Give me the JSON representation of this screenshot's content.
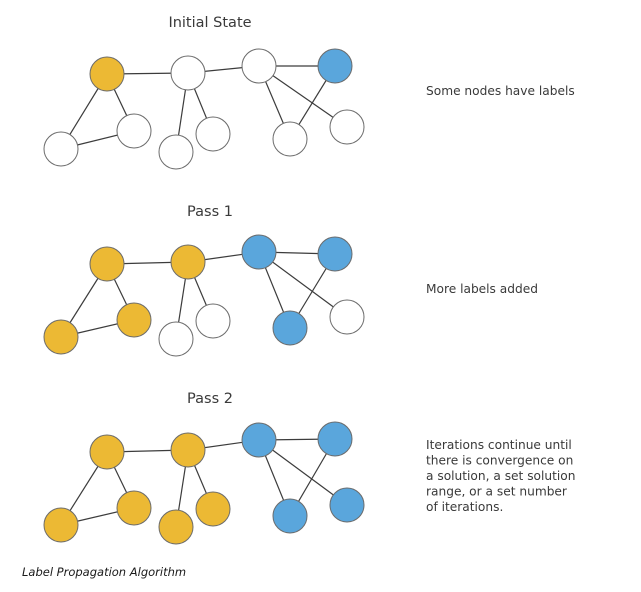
{
  "colors": {
    "unlabeled": "#ffffff",
    "orange": "#ecb934",
    "blue": "#5aa6dc"
  },
  "stages": [
    {
      "title": "Initial State",
      "note": [
        "Some nodes have labels"
      ],
      "labels": [
        "orange",
        "unlabeled",
        "unlabeled",
        "unlabeled",
        "unlabeled",
        "unlabeled",
        "blue",
        "unlabeled",
        "unlabeled"
      ]
    },
    {
      "title": "Pass 1",
      "note": [
        "More labels added"
      ],
      "labels": [
        "orange",
        "orange",
        "unlabeled",
        "orange",
        "unlabeled",
        "unlabeled",
        "blue",
        "blue",
        "blue"
      ]
    },
    {
      "title": "Pass 2",
      "note": [
        "Iterations continue until",
        "there is convergence on",
        "a solution, a set solution",
        "range, or a set number",
        "of iterations."
      ],
      "labels": [
        "orange",
        "orange",
        "orange",
        "orange",
        "orange",
        "orange",
        "blue",
        "blue",
        "blue"
      ]
    }
  ],
  "caption": "Label Propagation Algorithm"
}
